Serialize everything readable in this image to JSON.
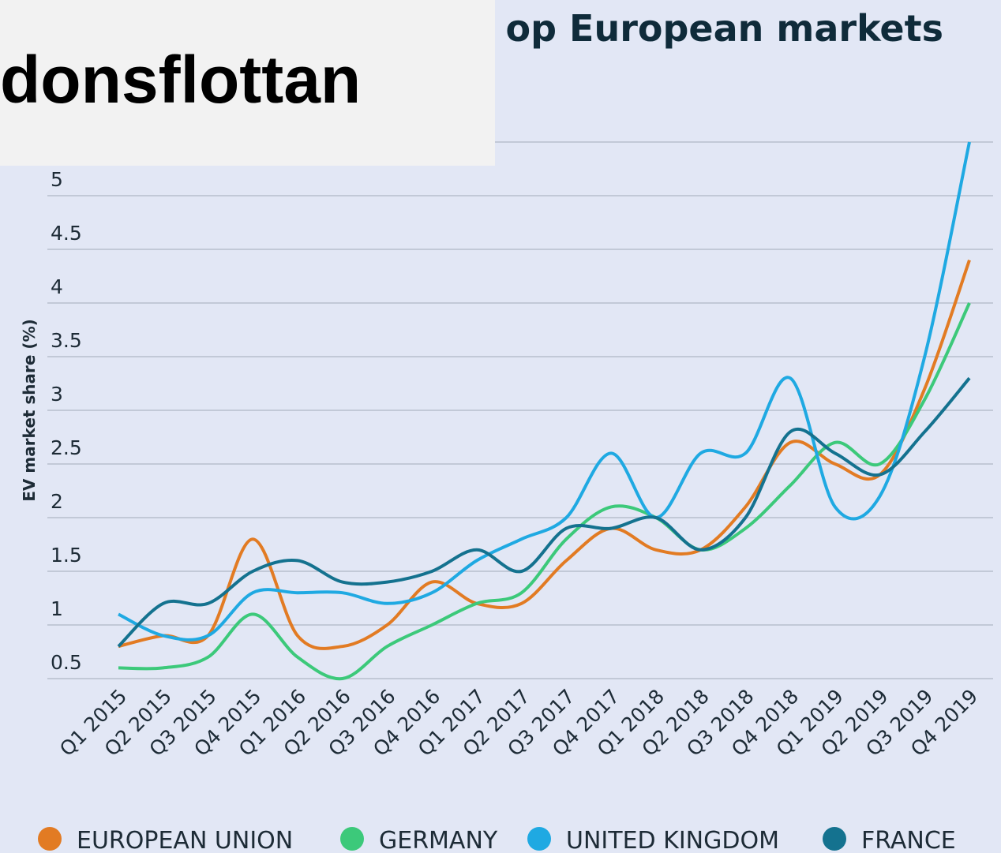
{
  "chart_data": {
    "type": "line",
    "title": "op European markets",
    "overlay_text": "donsflottan",
    "y_label": "EV market share (%)",
    "categories": [
      "Q1 2015",
      "Q2 2015",
      "Q3 2015",
      "Q4 2015",
      "Q1 2016",
      "Q2 2016",
      "Q3 2016",
      "Q4 2016",
      "Q1 2017",
      "Q2 2017",
      "Q3 2017",
      "Q4 2017",
      "Q1 2018",
      "Q2 2018",
      "Q3 2018",
      "Q4 2018",
      "Q1 2019",
      "Q2 2019",
      "Q3 2019",
      "Q4 2019"
    ],
    "series": [
      {
        "name": "EUROPEAN UNION",
        "color": "#e27b23",
        "values": [
          0.8,
          0.9,
          0.9,
          1.8,
          0.9,
          0.8,
          1.0,
          1.4,
          1.2,
          1.2,
          1.6,
          1.9,
          1.7,
          1.7,
          2.1,
          2.7,
          2.5,
          2.4,
          3.2,
          4.4
        ]
      },
      {
        "name": "GERMANY",
        "color": "#3cc97a",
        "values": [
          0.6,
          0.6,
          0.7,
          1.1,
          0.7,
          0.5,
          0.8,
          1.0,
          1.2,
          1.3,
          1.8,
          2.1,
          2.0,
          1.7,
          1.9,
          2.3,
          2.7,
          2.5,
          3.1,
          4.0
        ]
      },
      {
        "name": "UNITED KINGDOM",
        "color": "#1fa9e2",
        "values": [
          1.1,
          0.9,
          0.9,
          1.3,
          1.3,
          1.3,
          1.2,
          1.3,
          1.6,
          1.8,
          2.0,
          2.6,
          2.0,
          2.6,
          2.6,
          3.3,
          2.1,
          2.2,
          3.5,
          5.5
        ]
      },
      {
        "name": "FRANCE",
        "color": "#14728f",
        "values": [
          0.8,
          1.2,
          1.2,
          1.5,
          1.6,
          1.4,
          1.4,
          1.5,
          1.7,
          1.5,
          1.9,
          1.9,
          2.0,
          1.7,
          2.0,
          2.8,
          2.6,
          2.4,
          2.8,
          3.3
        ]
      }
    ],
    "ylim": [
      0.5,
      5.5
    ],
    "yticks": [
      0.5,
      1,
      1.5,
      2,
      2.5,
      3,
      3.5,
      4,
      4.5,
      5
    ],
    "grid": true
  }
}
